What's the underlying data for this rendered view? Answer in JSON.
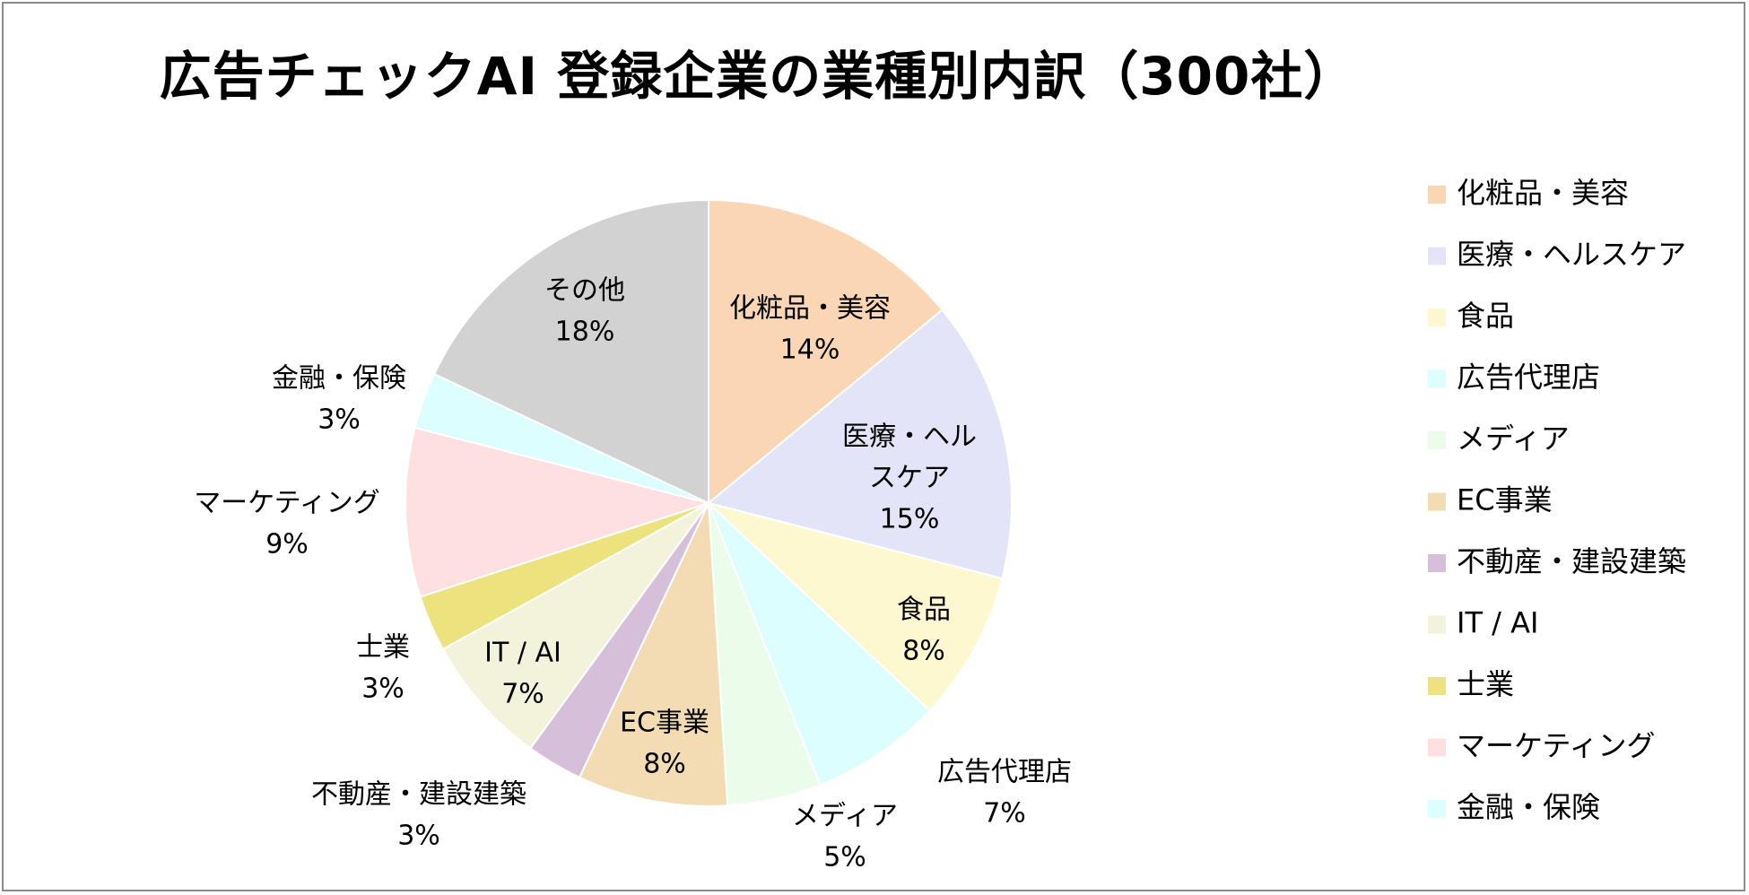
{
  "chart_data": {
    "type": "pie",
    "title": "広告チェックAI 登録企業の業種別内訳（300社）",
    "legend_position": "right",
    "slices": [
      {
        "name": "化粧品・美容",
        "label_lines": [
          "化粧品・美容"
        ],
        "value": 14,
        "value_label": "14%",
        "color": "#FBD6B4"
      },
      {
        "name": "医療・ヘルスケア",
        "label_lines": [
          "医療・ヘル",
          "スケア"
        ],
        "value": 15,
        "value_label": "15%",
        "color": "#E4E4F8"
      },
      {
        "name": "食品",
        "label_lines": [
          "食品"
        ],
        "value": 8,
        "value_label": "8%",
        "color": "#FEF8D0"
      },
      {
        "name": "広告代理店",
        "label_lines": [
          "広告代理店"
        ],
        "value": 7,
        "value_label": "7%",
        "color": "#DCFEFE"
      },
      {
        "name": "メディア",
        "label_lines": [
          "メディア"
        ],
        "value": 5,
        "value_label": "5%",
        "color": "#ECFCEA"
      },
      {
        "name": "EC事業",
        "label_lines": [
          "EC事業"
        ],
        "value": 8,
        "value_label": "8%",
        "color": "#F3DCB4"
      },
      {
        "name": "不動産・建設建築",
        "label_lines": [
          "不動産・建設建築"
        ],
        "value": 3,
        "value_label": "3%",
        "color": "#D6BFD8"
      },
      {
        "name": "IT / AI",
        "label_lines": [
          "IT / AI"
        ],
        "value": 7,
        "value_label": "7%",
        "color": "#F3F3DC"
      },
      {
        "name": "士業",
        "label_lines": [
          "士業"
        ],
        "value": 3,
        "value_label": "3%",
        "color": "#ECE27E"
      },
      {
        "name": "マーケティング",
        "label_lines": [
          "マーケティング"
        ],
        "value": 9,
        "value_label": "9%",
        "color": "#FEE0E0"
      },
      {
        "name": "金融・保険",
        "label_lines": [
          "金融・保険"
        ],
        "value": 3,
        "value_label": "3%",
        "color": "#DCFEFE"
      },
      {
        "name": "その他",
        "label_lines": [
          "その他"
        ],
        "value": 18,
        "value_label": "18%",
        "color": "#D2D2D2"
      }
    ],
    "legend": [
      "化粧品・美容",
      "医療・ヘルスケア",
      "食品",
      "広告代理店",
      "メディア",
      "EC事業",
      "不動産・建設建築",
      "IT / AI",
      "士業",
      "マーケティング",
      "金融・保険"
    ]
  }
}
